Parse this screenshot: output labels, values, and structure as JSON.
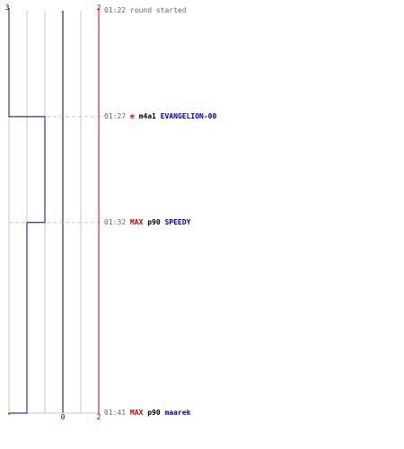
{
  "chart_data": {
    "type": "line",
    "title": "",
    "xlabel": "",
    "ylabel": "",
    "colors": {
      "team_blue": "#0000aa",
      "team_red": "#cc0000",
      "grid": "#c8c8c8",
      "zero_line": "#7f7f7f",
      "event_time": "#666666",
      "dash": "#c8c8c8"
    },
    "xlim": [
      0,
      5
    ],
    "top_labels": {
      "left": "3",
      "right": "2"
    },
    "bottom_labels": {
      "zero": "0",
      "right": "2"
    },
    "time_range": [
      "01:22",
      "01:41"
    ],
    "series": [
      {
        "color": "#0000aa",
        "points": [
          {
            "time": "01:22",
            "value": 3
          },
          {
            "time": "01:27",
            "value": 2
          },
          {
            "time": "01:32",
            "value": 1
          },
          {
            "time": "01:41",
            "value": 0
          }
        ]
      },
      {
        "color": "#cc0000",
        "points": [
          {
            "time": "01:22",
            "value": 5
          },
          {
            "time": "01:41",
            "value": 5
          }
        ]
      }
    ]
  },
  "events": [
    {
      "time": "01:22",
      "message": "round started"
    },
    {
      "time": "01:27",
      "attacker": "e",
      "attacker_color": "#cc0000",
      "weapon": "m4a1",
      "victim": "EVANGELION-00",
      "victim_color": "#0000aa"
    },
    {
      "time": "01:32",
      "attacker": "MAX",
      "attacker_color": "#cc0000",
      "weapon": "p90",
      "victim": "SPEEDY",
      "victim_color": "#0000aa"
    },
    {
      "time": "01:41",
      "attacker": "MAX",
      "attacker_color": "#cc0000",
      "weapon": "p90",
      "victim": "maarek",
      "victim_color": "#0000aa"
    }
  ]
}
